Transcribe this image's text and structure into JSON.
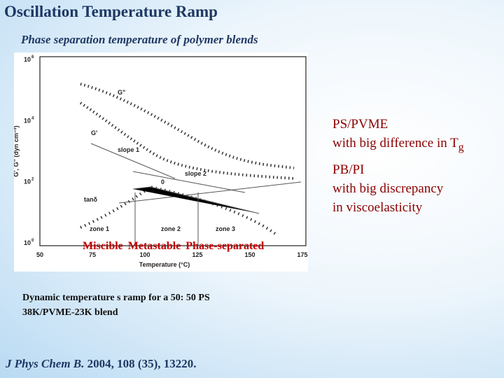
{
  "header": {
    "title": "Oscillation Temperature Ramp",
    "subtitle": "Phase separation temperature  of polymer blends"
  },
  "figure": {
    "y_label": "G', G\" (dyn cm⁻²)",
    "x_label": "Temperature (°C)",
    "y_ticks": [
      {
        "base": "10",
        "exp": "6"
      },
      {
        "base": "10",
        "exp": "4"
      },
      {
        "base": "10",
        "exp": "2"
      },
      {
        "base": "10",
        "exp": "0"
      }
    ],
    "x_ticks": [
      "50",
      "75",
      "100",
      "125",
      "150",
      "175"
    ],
    "annotations": {
      "g2": "G\"",
      "g1": "G'",
      "slope1": "slope 1",
      "slope2": "slope 2",
      "zero": "0",
      "tan": "tanδ"
    },
    "zones": [
      "zone 1",
      "zone 2",
      "zone 3"
    ]
  },
  "regions": [
    "Miscible",
    "Metastable",
    "Phase-separated"
  ],
  "notes": [
    {
      "title": "PS/PVME",
      "lines": [
        "with big difference in T"
      ],
      "subscript": "g"
    },
    {
      "title": "PB/PI",
      "lines": [
        "with big discrepancy",
        "in viscoelasticity"
      ]
    }
  ],
  "caption": [
    "Dynamic temperature s ramp for a 50: 50 PS",
    "38K/PVME-23K blend"
  ],
  "citation": {
    "journal": "J Phys Chem B.",
    "details": " 2004, 108 (35), 13220."
  }
}
